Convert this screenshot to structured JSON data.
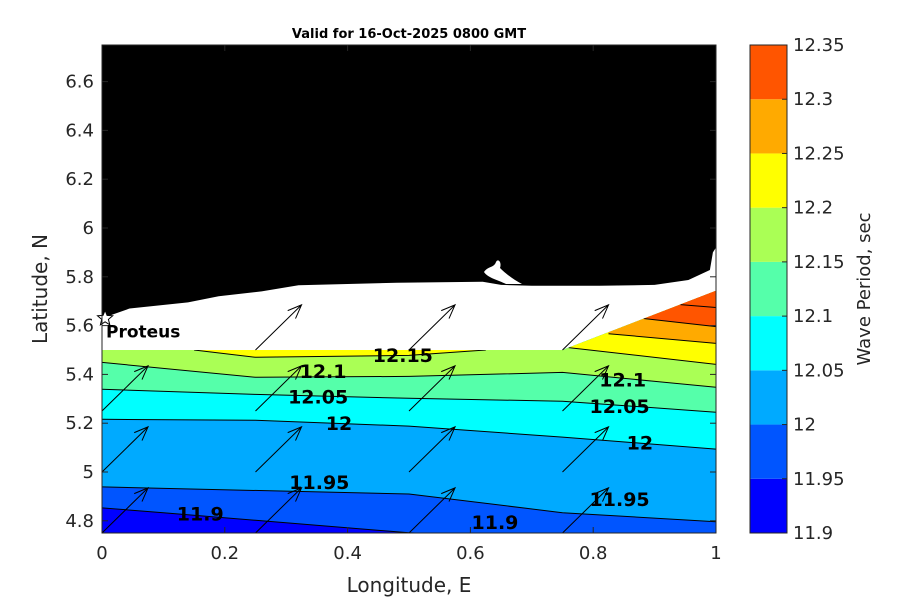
{
  "chart_data": {
    "type": "contour",
    "title": "Valid for 16-Oct-2025 0800 GMT",
    "xlabel": "Longitude, E",
    "ylabel": "Latitude, N",
    "xlim": [
      0,
      1
    ],
    "ylim": [
      4.75,
      6.75
    ],
    "xticks": [
      "0",
      "0.2",
      "0.4",
      "0.6",
      "0.8",
      "1"
    ],
    "xtick_values": [
      0,
      0.2,
      0.4,
      0.6,
      0.8,
      1
    ],
    "yticks": [
      "4.8",
      "5",
      "5.2",
      "5.4",
      "5.6",
      "5.8",
      "6",
      "6.2",
      "6.4",
      "6.6"
    ],
    "ytick_values": [
      4.8,
      5.0,
      5.2,
      5.4,
      5.6,
      5.8,
      6.0,
      6.2,
      6.4,
      6.6
    ],
    "colorbar": {
      "label": "Wave Period, sec",
      "levels": [
        11.9,
        11.95,
        12,
        12.05,
        12.1,
        12.15,
        12.2,
        12.25,
        12.3,
        12.35
      ],
      "tick_labels": [
        "11.9",
        "11.95",
        "12",
        "12.05",
        "12.1",
        "12.15",
        "12.2",
        "12.25",
        "12.3",
        "12.35"
      ],
      "colors": [
        "#0000FF",
        "#0055FF",
        "#00AAFF",
        "#00FFFF",
        "#55FFAA",
        "#AAFF55",
        "#FFFF00",
        "#FFAA00",
        "#FF5500"
      ]
    },
    "land_color": "#000000",
    "nodata_color": "#FFFFFF",
    "data_region": [
      [
        0,
        5.5
      ],
      [
        0.75,
        5.5
      ],
      [
        1,
        5.743
      ],
      [
        1,
        4.75
      ],
      [
        0,
        4.75
      ]
    ],
    "coastline": [
      [
        0,
        5.63
      ],
      [
        0.045,
        5.67
      ],
      [
        0.14,
        5.695
      ],
      [
        0.19,
        5.72
      ],
      [
        0.26,
        5.74
      ],
      [
        0.32,
        5.765
      ],
      [
        0.48,
        5.776
      ],
      [
        0.62,
        5.78
      ],
      [
        0.65,
        5.767
      ],
      [
        0.7,
        5.763
      ],
      [
        0.81,
        5.763
      ],
      [
        0.9,
        5.767
      ],
      [
        0.955,
        5.787
      ],
      [
        0.99,
        5.828
      ],
      [
        0.995,
        5.9
      ],
      [
        1,
        5.92
      ]
    ],
    "contours": [
      {
        "level": 11.9,
        "segments": [
          [
            [
              0,
              4.853
            ],
            [
              0.1,
              4.833
            ],
            [
              0.5,
              4.751
            ],
            [
              1,
              4.7
            ]
          ]
        ]
      },
      {
        "level": 11.95,
        "segments": [
          [
            [
              0,
              4.939
            ],
            [
              0.5,
              4.91
            ],
            [
              0.75,
              4.833
            ],
            [
              1,
              4.796
            ]
          ]
        ]
      },
      {
        "level": 12,
        "segments": [
          [
            [
              0,
              5.216
            ],
            [
              0.25,
              5.212
            ],
            [
              0.5,
              5.188
            ],
            [
              0.75,
              5.143
            ],
            [
              1,
              5.094
            ]
          ]
        ]
      },
      {
        "level": 12.05,
        "segments": [
          [
            [
              0,
              5.339
            ],
            [
              0.25,
              5.318
            ],
            [
              0.5,
              5.302
            ],
            [
              0.75,
              5.29
            ],
            [
              1,
              5.245
            ]
          ]
        ]
      },
      {
        "level": 12.1,
        "segments": [
          [
            [
              0,
              5.449
            ],
            [
              0.25,
              5.388
            ],
            [
              0.5,
              5.392
            ],
            [
              0.75,
              5.408
            ],
            [
              1,
              5.347
            ]
          ]
        ]
      },
      {
        "level": 12.15,
        "segments": [
          [
            [
              0.15,
              5.5
            ],
            [
              0.25,
              5.47
            ],
            [
              0.5,
              5.478
            ],
            [
              0.625,
              5.5
            ]
          ],
          [
            [
              0.76,
              5.51
            ],
            [
              1,
              5.441
            ]
          ]
        ]
      },
      {
        "level": 12.2,
        "segments": [
          [
            [
              0.825,
              5.567
            ],
            [
              1,
              5.527
            ]
          ]
        ]
      },
      {
        "level": 12.25,
        "segments": [
          [
            [
              0.882,
              5.629
            ],
            [
              1,
              5.596
            ]
          ]
        ]
      },
      {
        "level": 12.3,
        "segments": [
          [
            [
              0.942,
              5.686
            ],
            [
              1,
              5.674
            ]
          ]
        ]
      }
    ],
    "contour_labels": [
      {
        "text": "11.9",
        "lon": 0.16,
        "lat": 4.83
      },
      {
        "text": "11.9",
        "lon": 0.64,
        "lat": 4.75
      },
      {
        "text": "11.95",
        "lon": 0.354,
        "lat": 4.96
      },
      {
        "text": "11.95",
        "lon": 0.843,
        "lat": 4.89
      },
      {
        "text": "12",
        "lon": 0.386,
        "lat": 5.2
      },
      {
        "text": "12",
        "lon": 0.876,
        "lat": 5.12
      },
      {
        "text": "12.05",
        "lon": 0.352,
        "lat": 5.31
      },
      {
        "text": "12.05",
        "lon": 0.843,
        "lat": 5.27
      },
      {
        "text": "12.1",
        "lon": 0.36,
        "lat": 5.39
      },
      {
        "text": "12.1",
        "lon": 0.848,
        "lat": 5.38
      },
      {
        "text": "12.15",
        "lon": 0.49,
        "lat": 5.48
      }
    ],
    "vectors": {
      "u": 0.075,
      "v": 0.185,
      "points": [
        [
          0,
          4.75
        ],
        [
          0.25,
          4.75
        ],
        [
          0.5,
          4.75
        ],
        [
          0.75,
          4.75
        ],
        [
          0,
          5.0
        ],
        [
          0.25,
          5.0
        ],
        [
          0.5,
          5.0
        ],
        [
          0.75,
          5.0
        ],
        [
          0,
          5.25
        ],
        [
          0.25,
          5.25
        ],
        [
          0.5,
          5.25
        ],
        [
          0.75,
          5.25
        ],
        [
          0.25,
          5.5
        ],
        [
          0.5,
          5.5
        ],
        [
          0.75,
          5.5
        ]
      ]
    },
    "site": {
      "label": "Proteus",
      "lon": 0.005,
      "lat": 5.63
    }
  }
}
